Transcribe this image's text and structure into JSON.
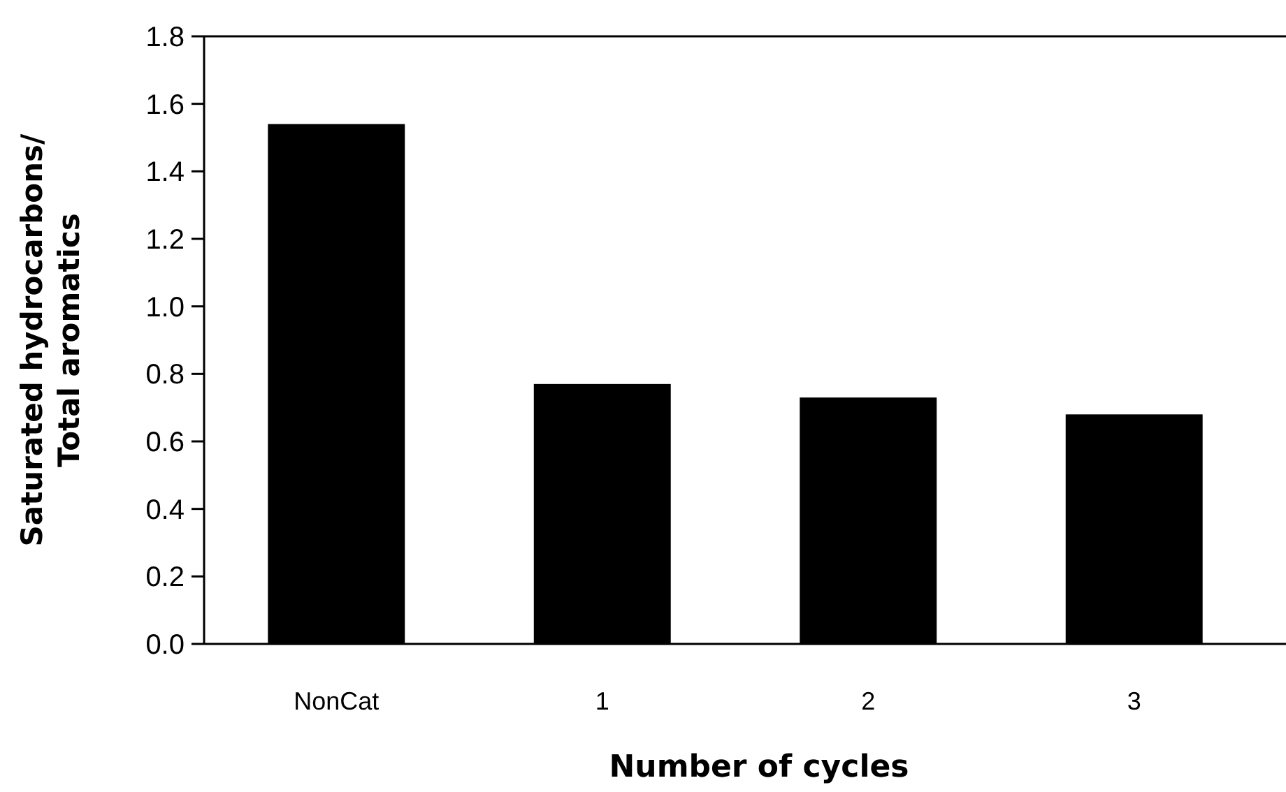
{
  "chart_data": {
    "type": "bar",
    "xlabel": "Number of cycles",
    "ylabel": "Saturated hydrocarbons/Total aromatics",
    "categories": [
      "NonCat",
      "1",
      "2",
      "3"
    ],
    "values": [
      1.54,
      0.77,
      0.73,
      0.68
    ],
    "color": "#000000",
    "ylim": [
      0,
      1.8
    ],
    "yticks": [
      {
        "value": 0,
        "label": "0.0"
      },
      {
        "value": 0.2,
        "label": "0.2"
      },
      {
        "value": 0.4,
        "label": "0.4"
      },
      {
        "value": 0.6,
        "label": "0.6"
      },
      {
        "value": 0.8,
        "label": "0.8"
      },
      {
        "value": 1,
        "label": "1.0"
      },
      {
        "value": 1.2,
        "label": "1.2"
      },
      {
        "value": 1.4,
        "label": "1.4"
      },
      {
        "value": 1.6,
        "label": "1.6"
      },
      {
        "value": 1.8,
        "label": "1.8"
      }
    ],
    "grid": false
  }
}
